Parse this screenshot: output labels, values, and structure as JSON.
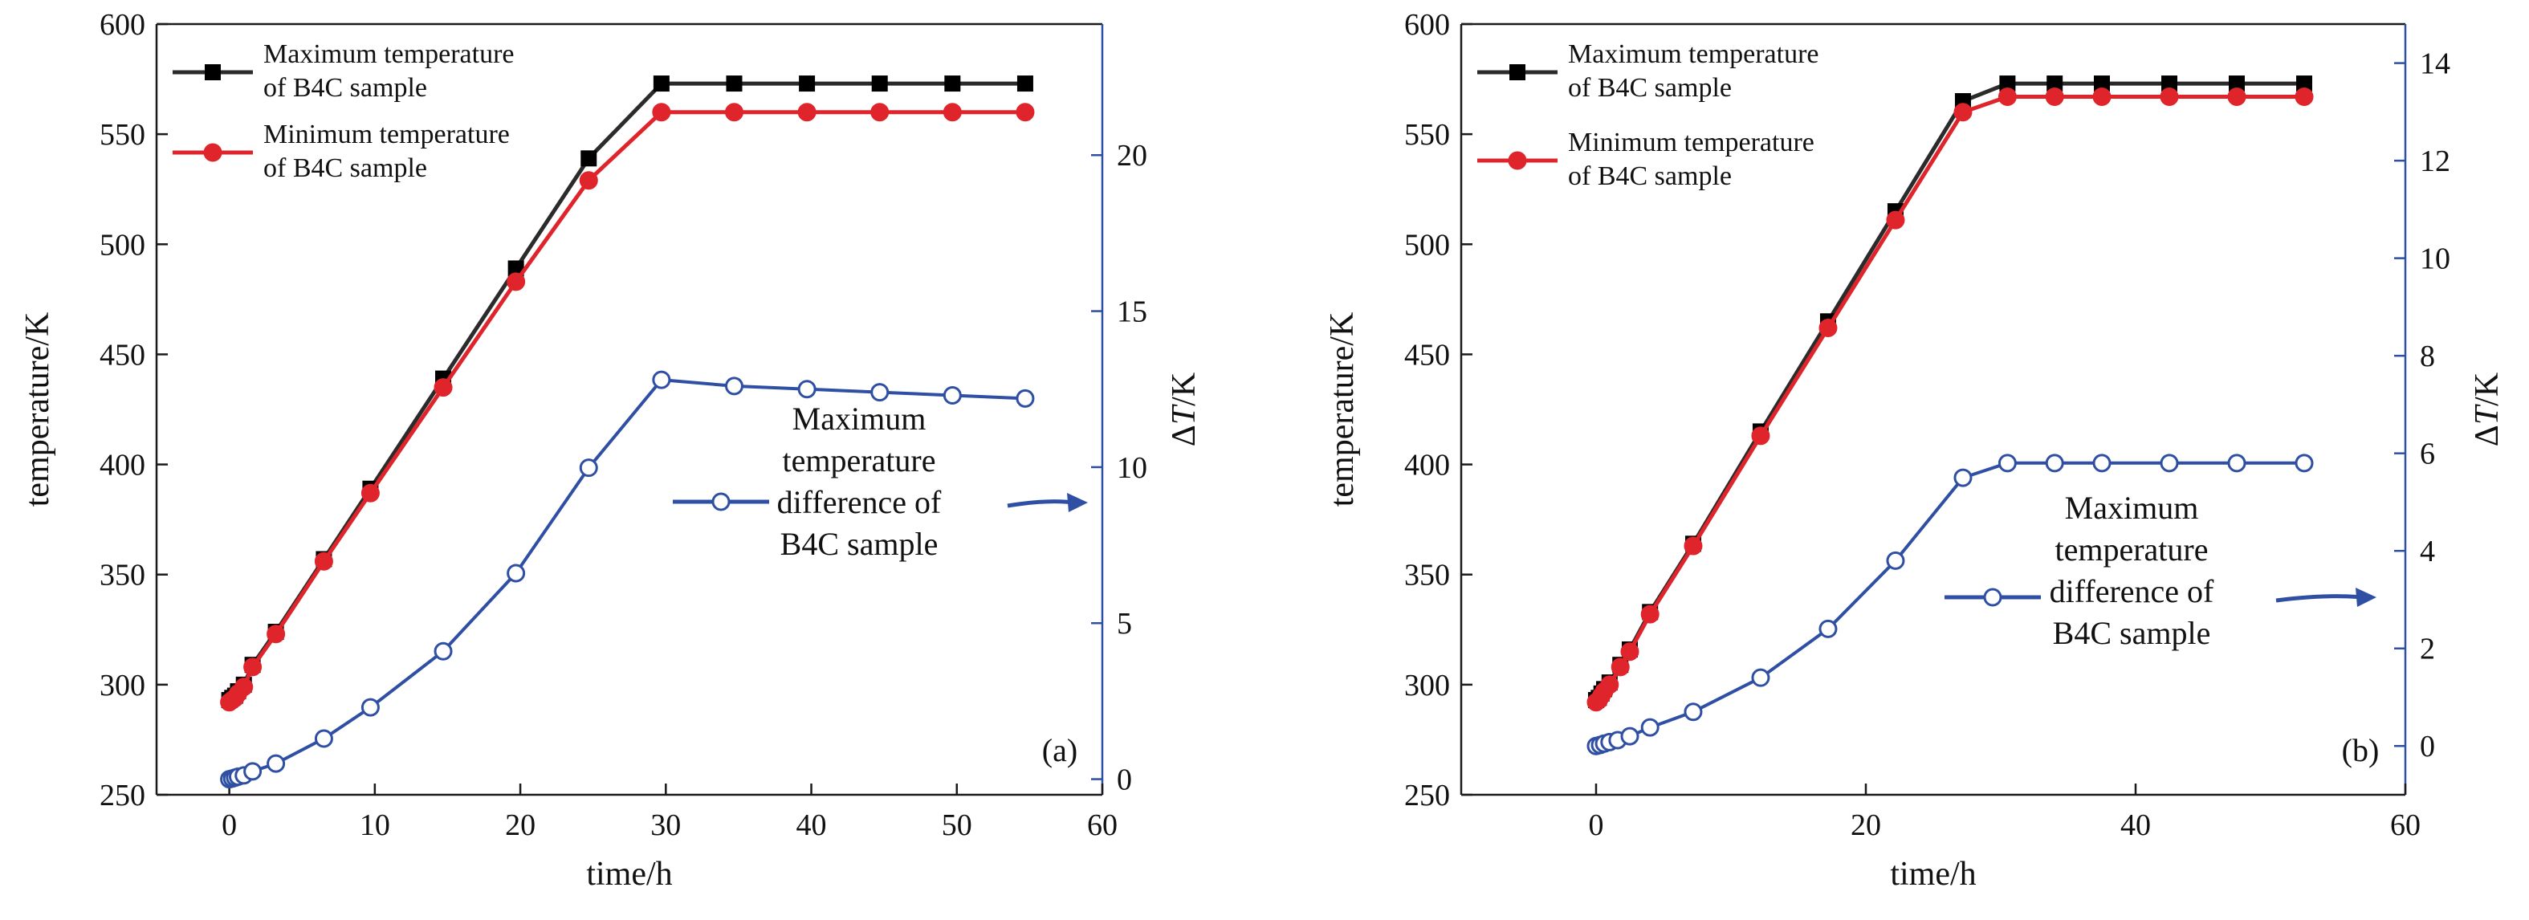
{
  "colors": {
    "max_series": "#2b2b2b",
    "min_series": "#e0242b",
    "dt_series": "#2e4fa3",
    "axis": "#1a1a1a"
  },
  "chart_data": [
    {
      "type": "line",
      "panel_label": "(a)",
      "xlabel": "time/h",
      "ylabel": "temperature/K",
      "y2label_prefix": "Δ",
      "y2label_var": "T",
      "y2label_unit": "/K",
      "xlim": [
        -5,
        60
      ],
      "ylim": [
        250,
        600
      ],
      "y2lim": [
        -0.5,
        24.2
      ],
      "xticks": [
        0,
        10,
        20,
        30,
        40,
        50,
        60
      ],
      "yticks": [
        250,
        300,
        350,
        400,
        450,
        500,
        550,
        600
      ],
      "y2ticks": [
        0,
        5,
        10,
        15,
        20
      ],
      "series": [
        {
          "name": "Maximum temperature of B4C sample",
          "legend_lines": [
            "Maximum temperature",
            "of B4C sample"
          ],
          "axis": "left",
          "marker": "square",
          "x": [
            0,
            0.2,
            0.4,
            0.6,
            1.0,
            1.6,
            3.2,
            6.5,
            9.7,
            14.7,
            19.7,
            24.7,
            29.7,
            34.7,
            39.7,
            44.7,
            49.7,
            54.7
          ],
          "y": [
            293,
            294,
            295,
            297,
            300,
            309,
            324,
            357,
            389,
            439,
            489,
            539,
            573,
            573,
            573,
            573,
            573,
            573
          ]
        },
        {
          "name": "Minimum temperature of B4C sample",
          "legend_lines": [
            "Minimum temperature",
            "of B4C sample"
          ],
          "axis": "left",
          "marker": "circle",
          "x": [
            0,
            0.2,
            0.4,
            0.6,
            1.0,
            1.6,
            3.2,
            6.5,
            9.7,
            14.7,
            19.7,
            24.7,
            29.7,
            34.7,
            39.7,
            44.7,
            49.7,
            54.7
          ],
          "y": [
            292,
            293,
            294,
            296,
            299,
            308,
            323,
            356,
            387,
            435,
            483,
            529,
            560,
            560,
            560,
            560,
            560,
            560
          ]
        },
        {
          "name": "Maximum temperature difference of B4C sample",
          "legend_lines": [
            "Maximum",
            "temperature",
            "difference of",
            "B4C sample"
          ],
          "axis": "right",
          "marker": "open-circle",
          "x": [
            0,
            0.2,
            0.4,
            0.6,
            1.0,
            1.6,
            3.2,
            6.5,
            9.7,
            14.7,
            19.7,
            24.7,
            29.7,
            34.7,
            39.7,
            44.7,
            49.7,
            54.7
          ],
          "y": [
            0.0,
            0.02,
            0.05,
            0.08,
            0.12,
            0.25,
            0.5,
            1.3,
            2.3,
            4.1,
            6.6,
            9.98,
            12.8,
            12.6,
            12.5,
            12.4,
            12.3,
            12.2
          ]
        }
      ]
    },
    {
      "type": "line",
      "panel_label": "(b)",
      "xlabel": "time/h",
      "ylabel": "temperature/K",
      "y2label_prefix": "Δ",
      "y2label_var": "T",
      "y2label_unit": "/K",
      "xlim": [
        -10,
        60
      ],
      "ylim": [
        250,
        600
      ],
      "y2lim": [
        -1,
        14.8
      ],
      "xticks": [
        0,
        20,
        40,
        60
      ],
      "yticks": [
        250,
        300,
        350,
        400,
        450,
        500,
        550,
        600
      ],
      "y2ticks": [
        0,
        2,
        4,
        6,
        8,
        10,
        12,
        14
      ],
      "series": [
        {
          "name": "Maximum temperature of B4C sample",
          "legend_lines": [
            "Maximum temperature",
            "of B4C sample"
          ],
          "axis": "left",
          "marker": "square",
          "x": [
            0,
            0.2,
            0.4,
            0.6,
            1.0,
            1.8,
            2.5,
            4.0,
            7.2,
            12.2,
            17.2,
            22.2,
            27.2,
            30.5,
            34.0,
            37.5,
            42.5,
            47.5,
            52.5
          ],
          "y": [
            293,
            294,
            296,
            298,
            301,
            309,
            316,
            333,
            364,
            415,
            465,
            515,
            565,
            573,
            573,
            573,
            573,
            573,
            573
          ]
        },
        {
          "name": "Minimum temperature of B4C sample",
          "legend_lines": [
            "Minimum temperature",
            "of B4C sample"
          ],
          "axis": "left",
          "marker": "circle",
          "x": [
            0,
            0.2,
            0.4,
            0.6,
            1.0,
            1.8,
            2.5,
            4.0,
            7.2,
            12.2,
            17.2,
            22.2,
            27.2,
            30.5,
            34.0,
            37.5,
            42.5,
            47.5,
            52.5
          ],
          "y": [
            292,
            293,
            295,
            297,
            300,
            308,
            315,
            332,
            363,
            413,
            462,
            511,
            560,
            567,
            567,
            567,
            567,
            567,
            567
          ]
        },
        {
          "name": "Maximum temperature difference of B4C sample",
          "legend_lines": [
            "Maximum",
            "temperature",
            "difference of",
            "B4C sample"
          ],
          "axis": "right",
          "marker": "open-circle",
          "x": [
            0,
            0.3,
            0.6,
            1.0,
            1.6,
            2.5,
            4.0,
            7.2,
            12.2,
            17.2,
            22.2,
            27.2,
            30.5,
            34.0,
            37.5,
            42.5,
            47.5,
            52.5
          ],
          "y": [
            0.0,
            0.02,
            0.05,
            0.08,
            0.12,
            0.2,
            0.38,
            0.7,
            1.4,
            2.4,
            3.8,
            5.5,
            5.8,
            5.8,
            5.8,
            5.8,
            5.8,
            5.8
          ]
        }
      ]
    }
  ]
}
